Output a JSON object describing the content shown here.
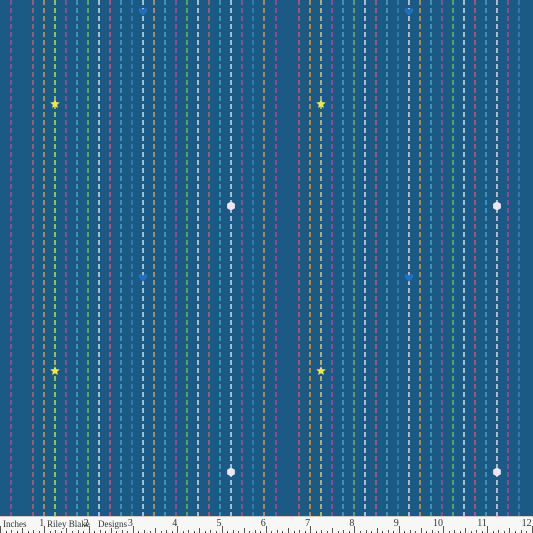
{
  "fabric": {
    "background_color": "#1c5a86",
    "stitch_colors": [
      "#e8537a",
      "#f4a04a",
      "#f2e45a",
      "#7ac84e",
      "#4fb3c9",
      "#f3f3f3",
      "#c24a8f",
      "#3f8ac8"
    ],
    "motifs": [
      "star-icon",
      "heart-icon",
      "hexagon-icon"
    ],
    "motif_colors": {
      "star": "#f5e64a",
      "heart": "#1f6fc2",
      "hexagon": "#f0e4ee"
    }
  },
  "ruler": {
    "unit_label": "Inches",
    "brand_left": "Riley Blake",
    "brand_right": "Designs",
    "numbers": [
      "1",
      "2",
      "3",
      "4",
      "5",
      "6",
      "7",
      "8",
      "9",
      "10",
      "11",
      "12"
    ]
  }
}
